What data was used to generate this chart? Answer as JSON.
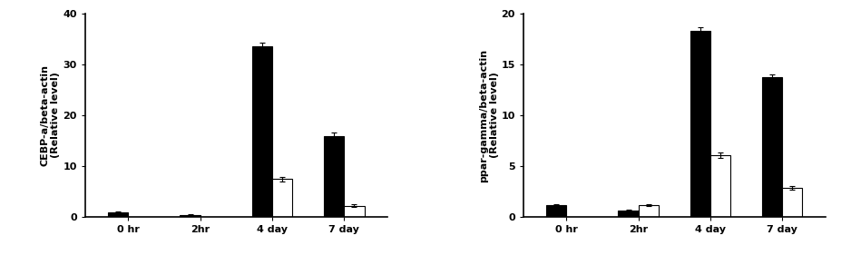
{
  "chart1": {
    "ylabel": "CEBP-a/beta-actin\n(Relative level)",
    "categories": [
      "0 hr",
      "2hr",
      "4 day",
      "7 day"
    ],
    "black_values": [
      1.0,
      0.5,
      33.5,
      16.0
    ],
    "white_values": [
      null,
      null,
      7.5,
      2.3
    ],
    "black_errors": [
      0.15,
      0.1,
      0.8,
      0.6
    ],
    "white_errors": [
      null,
      null,
      0.4,
      0.2
    ],
    "ylim": [
      0,
      40
    ],
    "yticks": [
      0,
      10,
      20,
      30,
      40
    ]
  },
  "chart2": {
    "ylabel": "ppar-gamma/beta-actin\n(Relative level)",
    "categories": [
      "0 hr",
      "2hr",
      "4 day",
      "7 day"
    ],
    "black_values": [
      1.2,
      0.7,
      18.3,
      13.7
    ],
    "white_values": [
      null,
      1.2,
      6.1,
      2.9
    ],
    "black_errors": [
      0.1,
      0.08,
      0.35,
      0.3
    ],
    "white_errors": [
      null,
      0.12,
      0.25,
      0.15
    ],
    "ylim": [
      0,
      20
    ],
    "yticks": [
      0,
      5,
      10,
      15,
      20
    ]
  },
  "bar_width": 0.28,
  "black_color": "#000000",
  "white_color": "#ffffff",
  "edge_color": "#000000",
  "text_color": "#000000",
  "ylabel_fontsize": 8,
  "tick_fontsize": 8,
  "label_fontsize": 8
}
